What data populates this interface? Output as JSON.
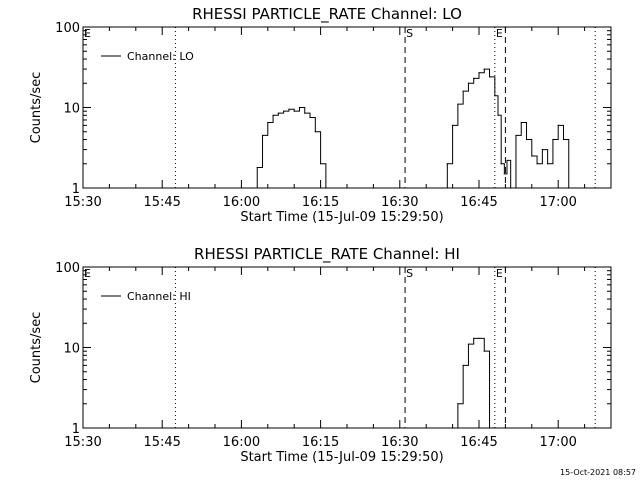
{
  "footer_timestamp": "15-Oct-2021 08:57",
  "colors": {
    "background": "#ffffff",
    "foreground": "#000000"
  },
  "chart_data": [
    {
      "type": "line",
      "title": "RHESSI PARTICLE_RATE Channel: LO",
      "xlabel": "Start Time (15-Jul-09 15:29:50)",
      "ylabel": "Counts/sec",
      "x_unit": "minutes after 15:30",
      "xlim": [
        0,
        100
      ],
      "ylim": [
        1,
        100
      ],
      "yscale": "log",
      "xticks": [
        {
          "v": 0,
          "label": "15:30"
        },
        {
          "v": 15,
          "label": "15:45"
        },
        {
          "v": 30,
          "label": "16:00"
        },
        {
          "v": 45,
          "label": "16:15"
        },
        {
          "v": 60,
          "label": "16:30"
        },
        {
          "v": 75,
          "label": "16:45"
        },
        {
          "v": 90,
          "label": "17:00"
        }
      ],
      "yticks": [
        {
          "v": 1,
          "label": "1"
        },
        {
          "v": 10,
          "label": "10"
        },
        {
          "v": 100,
          "label": "100"
        }
      ],
      "legend": {
        "label": "Channel: LO",
        "position": "top-left"
      },
      "markers": [
        {
          "x": 0,
          "label": "E",
          "style": "dotted"
        },
        {
          "x": 17.5,
          "label": "",
          "style": "dotted"
        },
        {
          "x": 61,
          "label": "S",
          "style": "dashed"
        },
        {
          "x": 78,
          "label": "E",
          "style": "dotted"
        },
        {
          "x": 80,
          "label": "",
          "style": "dashed"
        },
        {
          "x": 97,
          "label": "",
          "style": "dotted"
        }
      ],
      "series": [
        {
          "x": [
            32,
            33,
            34,
            35,
            36,
            37,
            38,
            39,
            40,
            41,
            42,
            43,
            44,
            45,
            46
          ],
          "y": [
            1,
            1.8,
            4.5,
            6.5,
            8,
            8.5,
            9,
            9.5,
            9,
            10,
            8.5,
            7.5,
            5,
            2,
            1
          ]
        },
        {
          "x": [
            68,
            69,
            70,
            71,
            72,
            73,
            74,
            75,
            76,
            77,
            78,
            78.6,
            79.2,
            79.8,
            80.3,
            81
          ],
          "y": [
            1,
            2,
            6,
            11,
            16,
            20,
            23,
            27,
            30,
            24,
            14,
            8,
            2,
            1.5,
            2.2,
            1
          ]
        },
        {
          "x": [
            81,
            82,
            83,
            84,
            85,
            86,
            87,
            88,
            89,
            90,
            91,
            92
          ],
          "y": [
            1,
            4.5,
            6.5,
            4,
            2.5,
            2,
            3,
            2,
            4,
            6,
            4,
            1
          ]
        }
      ]
    },
    {
      "type": "line",
      "title": "RHESSI PARTICLE_RATE Channel: HI",
      "xlabel": "Start Time (15-Jul-09 15:29:50)",
      "ylabel": "Counts/sec",
      "x_unit": "minutes after 15:30",
      "xlim": [
        0,
        100
      ],
      "ylim": [
        1,
        100
      ],
      "yscale": "log",
      "xticks": [
        {
          "v": 0,
          "label": "15:30"
        },
        {
          "v": 15,
          "label": "15:45"
        },
        {
          "v": 30,
          "label": "16:00"
        },
        {
          "v": 45,
          "label": "16:15"
        },
        {
          "v": 60,
          "label": "16:30"
        },
        {
          "v": 75,
          "label": "16:45"
        },
        {
          "v": 90,
          "label": "17:00"
        }
      ],
      "yticks": [
        {
          "v": 1,
          "label": "1"
        },
        {
          "v": 10,
          "label": "10"
        },
        {
          "v": 100,
          "label": "100"
        }
      ],
      "legend": {
        "label": "Channel: HI",
        "position": "top-left"
      },
      "markers": [
        {
          "x": 0,
          "label": "E",
          "style": "dotted"
        },
        {
          "x": 17.5,
          "label": "",
          "style": "dotted"
        },
        {
          "x": 61,
          "label": "S",
          "style": "dashed"
        },
        {
          "x": 78,
          "label": "E",
          "style": "dotted"
        },
        {
          "x": 80,
          "label": "",
          "style": "dashed"
        },
        {
          "x": 97,
          "label": "",
          "style": "dotted"
        }
      ],
      "series": [
        {
          "x": [
            70,
            71,
            72,
            73,
            74,
            75,
            76,
            77
          ],
          "y": [
            1,
            2,
            6,
            11,
            13,
            13,
            9,
            1
          ]
        }
      ]
    }
  ]
}
